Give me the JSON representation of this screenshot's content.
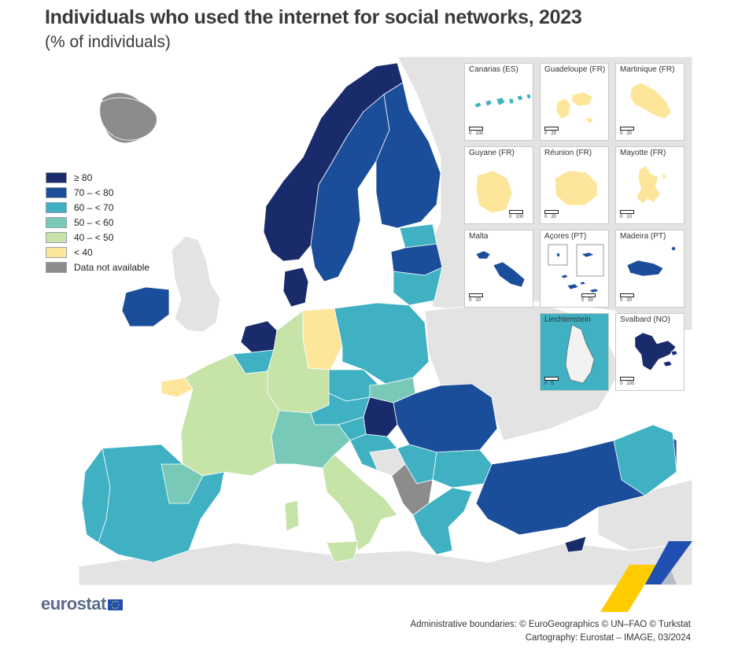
{
  "title": "Individuals who used the internet for social networks, 2023",
  "subtitle": "(% of individuals)",
  "legend": {
    "items": [
      {
        "label": "≥ 80",
        "color": "#1a2b6b"
      },
      {
        "label": "70 – < 80",
        "color": "#1b4e9a"
      },
      {
        "label": "60 – < 70",
        "color": "#3fb1c3"
      },
      {
        "label": "50 – < 60",
        "color": "#79c9b8"
      },
      {
        "label": "40 – < 50",
        "color": "#c6e3a8"
      },
      {
        "label": "< 40",
        "color": "#fde59a"
      },
      {
        "label": "Data not available",
        "color": "#8c8c8c"
      }
    ]
  },
  "insets": [
    {
      "label": "Canarias (ES)",
      "scale": [
        "0",
        "100"
      ],
      "class": "60 – < 70"
    },
    {
      "label": "Guadeloupe (FR)",
      "scale": [
        "0",
        "20"
      ],
      "class": "< 40"
    },
    {
      "label": "Martinique (FR)",
      "scale": [
        "0",
        "20"
      ],
      "class": "< 40"
    },
    {
      "label": "Guyane (FR)",
      "scale": [
        "0",
        "100"
      ],
      "class": "< 40"
    },
    {
      "label": "Réunion (FR)",
      "scale": [
        "0",
        "20"
      ],
      "class": "< 40"
    },
    {
      "label": "Mayotte (FR)",
      "scale": [
        "0",
        "10"
      ],
      "class": "< 40"
    },
    {
      "label": "Malta",
      "scale": [
        "0",
        "10"
      ],
      "class": "70 – < 80"
    },
    {
      "label": "Açores (PT)",
      "scale": [
        "0",
        "50"
      ],
      "class": "70 – < 80"
    },
    {
      "label": "Madeira (PT)",
      "scale": [
        "0",
        "20"
      ],
      "class": "70 – < 80"
    },
    {
      "label": "Liechtenstein",
      "scale": [
        "0",
        "5"
      ],
      "class": "60 – < 70"
    },
    {
      "label": "Svalbard (NO)",
      "scale": [
        "0",
        "100"
      ],
      "class": "≥ 80"
    }
  ],
  "regions": [
    {
      "name": "Norway",
      "class": "≥ 80"
    },
    {
      "name": "Sweden",
      "class": "70 – < 80"
    },
    {
      "name": "Finland",
      "class": "70 – < 80"
    },
    {
      "name": "Denmark",
      "class": "≥ 80"
    },
    {
      "name": "Netherlands",
      "class": "≥ 80"
    },
    {
      "name": "Hungary",
      "class": "≥ 80"
    },
    {
      "name": "Cyprus",
      "class": "≥ 80"
    },
    {
      "name": "Ireland",
      "class": "70 – < 80"
    },
    {
      "name": "Latvia",
      "class": "70 – < 80"
    },
    {
      "name": "Romania",
      "class": "70 – < 80"
    },
    {
      "name": "Türkiye",
      "class": "70 – < 80"
    },
    {
      "name": "Estonia",
      "class": "60 – < 70"
    },
    {
      "name": "Lithuania",
      "class": "60 – < 70"
    },
    {
      "name": "Poland",
      "class": "60 – < 70"
    },
    {
      "name": "Spain",
      "class": "60 – < 70"
    },
    {
      "name": "Portugal",
      "class": "60 – < 70"
    },
    {
      "name": "Belgium",
      "class": "60 – < 70"
    },
    {
      "name": "Austria",
      "class": "60 – < 70"
    },
    {
      "name": "Croatia",
      "class": "60 – < 70"
    },
    {
      "name": "Slovenia",
      "class": "60 – < 70"
    },
    {
      "name": "Serbia",
      "class": "60 – < 70"
    },
    {
      "name": "Bulgaria",
      "class": "60 – < 70"
    },
    {
      "name": "Greece",
      "class": "60 – < 70"
    },
    {
      "name": "Czechia",
      "class": "60 – < 70"
    },
    {
      "name": "Slovakia",
      "class": "50 – < 60"
    },
    {
      "name": "Italy (north)",
      "class": "50 – < 60"
    },
    {
      "name": "Germany",
      "class": "40 – < 50"
    },
    {
      "name": "France",
      "class": "40 – < 50"
    },
    {
      "name": "Italy (south)",
      "class": "40 – < 50"
    },
    {
      "name": "Bretagne",
      "class": "< 40"
    },
    {
      "name": "Germany (north-east)",
      "class": "< 40"
    },
    {
      "name": "Iceland",
      "class": "Data not available"
    },
    {
      "name": "North Macedonia / Kosovo / Albania",
      "class": "Data not available"
    }
  ],
  "logo": {
    "text": "eurostat"
  },
  "credits": {
    "line1": "Administrative boundaries: © EuroGeographics © UN–FAO © Turkstat",
    "line2": "Cartography: Eurostat – IMAGE, 03/2024"
  }
}
